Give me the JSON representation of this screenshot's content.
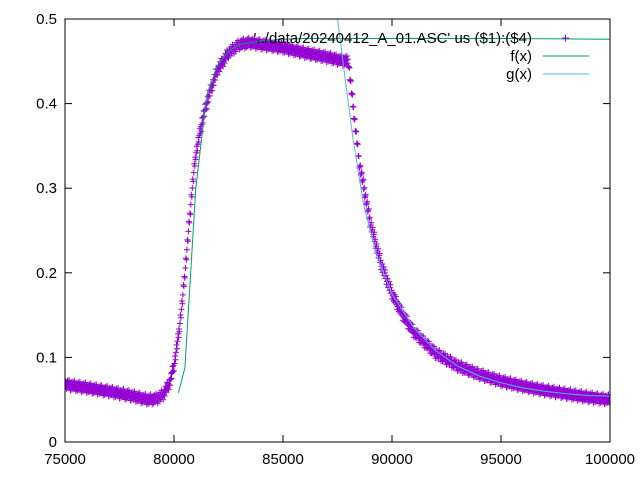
{
  "chart_data": {
    "type": "scatter",
    "grid": false,
    "legend_position": "top-right",
    "xlim": [
      75000,
      100000
    ],
    "ylim": [
      0,
      0.5
    ],
    "x_ticks": [
      75000,
      80000,
      85000,
      90000,
      95000,
      100000
    ],
    "y_ticks": [
      0,
      0.1,
      0.2,
      0.3,
      0.4,
      0.5
    ],
    "x_tick_labels": [
      "75000",
      "80000",
      "85000",
      "90000",
      "95000",
      "100000"
    ],
    "y_tick_labels": [
      "0",
      "0.1",
      "0.2",
      "0.3",
      "0.4",
      "0.5"
    ],
    "series": [
      {
        "name": "'../data/20240412_A_01.ASC' us ($1):($4)",
        "kind": "points",
        "marker": "+",
        "color": "#9400d3",
        "band_halfwidth": 0.006,
        "x": [
          75000,
          76000,
          77000,
          78000,
          78800,
          79200,
          79500,
          79800,
          80000,
          80200,
          80400,
          80600,
          80800,
          81000,
          81300,
          81600,
          82000,
          82500,
          83000,
          83500,
          84000,
          85000,
          86000,
          87000,
          87500,
          88000,
          88200,
          88500,
          89000,
          89500,
          90000,
          90500,
          91000,
          92000,
          93000,
          94000,
          95000,
          96000,
          97000,
          98000,
          99000,
          100000
        ],
        "y": [
          0.068,
          0.064,
          0.06,
          0.055,
          0.05,
          0.051,
          0.056,
          0.07,
          0.09,
          0.125,
          0.17,
          0.23,
          0.29,
          0.34,
          0.38,
          0.41,
          0.44,
          0.46,
          0.47,
          0.472,
          0.47,
          0.466,
          0.46,
          0.455,
          0.452,
          0.45,
          0.4,
          0.33,
          0.26,
          0.21,
          0.175,
          0.15,
          0.13,
          0.105,
          0.09,
          0.08,
          0.072,
          0.066,
          0.061,
          0.057,
          0.053,
          0.05
        ]
      },
      {
        "name": "f(x)",
        "kind": "line",
        "color": "#009e73",
        "x": [
          80200,
          80500,
          81000,
          81500,
          82000,
          82500,
          83000,
          84000,
          85000,
          86000,
          88000,
          90000,
          95000,
          100000
        ],
        "y": [
          0.058,
          0.088,
          0.3,
          0.41,
          0.445,
          0.462,
          0.47,
          0.474,
          0.476,
          0.477,
          0.477,
          0.477,
          0.477,
          0.476
        ]
      },
      {
        "name": "g(x)",
        "kind": "line",
        "color": "#56b4e9",
        "x": [
          87500,
          87800,
          88200,
          88700,
          89300,
          90000,
          91000,
          92000,
          93000,
          94000,
          95000,
          96000,
          97000,
          98000,
          99000,
          100000
        ],
        "y": [
          0.5,
          0.44,
          0.36,
          0.28,
          0.22,
          0.175,
          0.135,
          0.108,
          0.09,
          0.078,
          0.07,
          0.064,
          0.06,
          0.057,
          0.055,
          0.054
        ]
      }
    ]
  }
}
